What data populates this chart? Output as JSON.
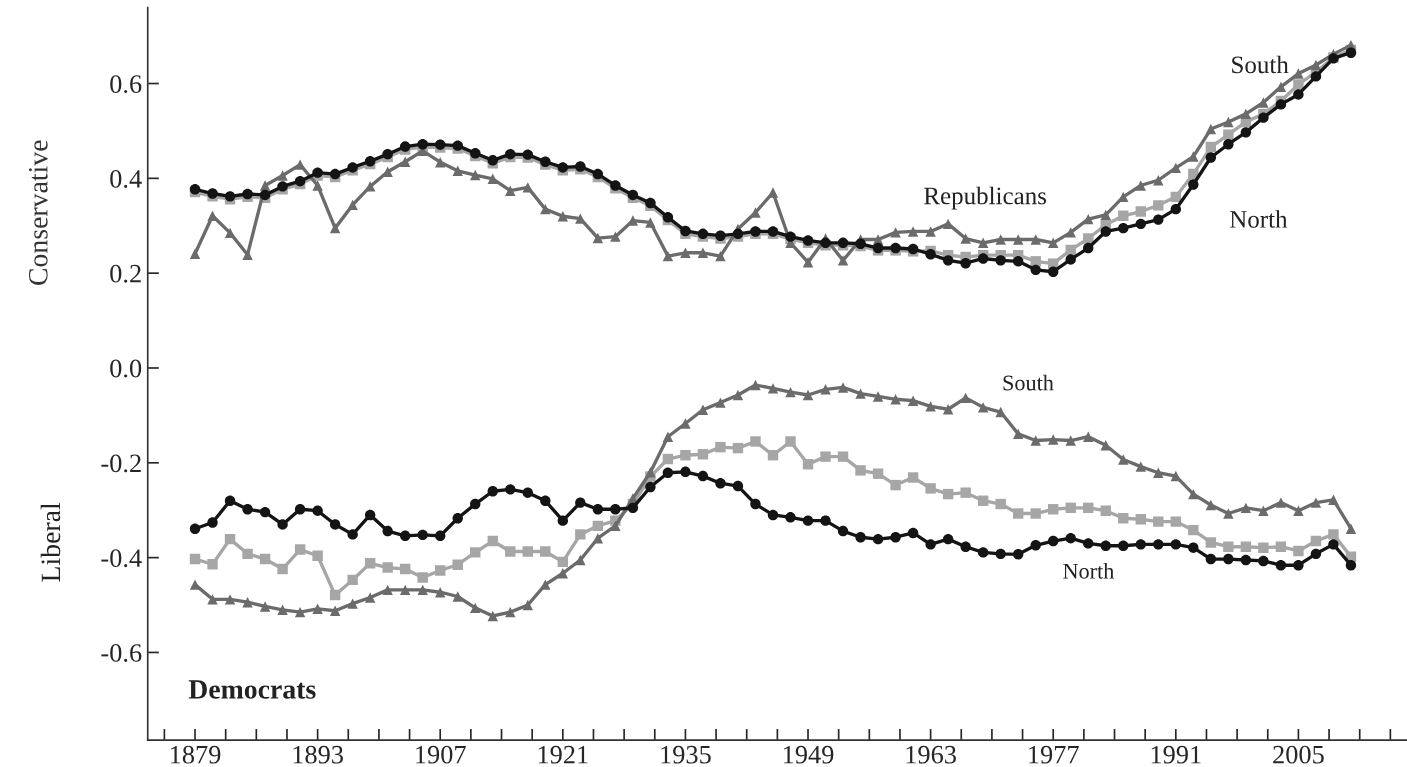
{
  "chart_data": {
    "type": "line",
    "x": [
      1879,
      1881,
      1883,
      1885,
      1887,
      1889,
      1891,
      1893,
      1895,
      1897,
      1899,
      1901,
      1903,
      1905,
      1907,
      1909,
      1911,
      1913,
      1915,
      1917,
      1919,
      1921,
      1923,
      1925,
      1927,
      1929,
      1931,
      1933,
      1935,
      1937,
      1939,
      1941,
      1943,
      1945,
      1947,
      1949,
      1951,
      1953,
      1955,
      1957,
      1959,
      1961,
      1963,
      1965,
      1967,
      1969,
      1971,
      1973,
      1975,
      1977,
      1979,
      1981,
      1983,
      1985,
      1987,
      1989,
      1991,
      1993,
      1995,
      1997,
      1999,
      2001,
      2003,
      2005,
      2007,
      2009,
      2011
    ],
    "series": [
      {
        "color": "#a6a6a6",
        "marker": "square",
        "values": [
          0.371,
          0.362,
          0.356,
          0.361,
          0.359,
          0.377,
          0.388,
          0.406,
          0.403,
          0.417,
          0.43,
          0.445,
          0.461,
          0.466,
          0.465,
          0.463,
          0.447,
          0.432,
          0.445,
          0.444,
          0.429,
          0.417,
          0.419,
          0.403,
          0.379,
          0.359,
          0.342,
          0.312,
          0.283,
          0.277,
          0.273,
          0.277,
          0.283,
          0.283,
          0.272,
          0.264,
          0.259,
          0.259,
          0.257,
          0.248,
          0.248,
          0.246,
          0.247,
          0.238,
          0.234,
          0.238,
          0.238,
          0.238,
          0.225,
          0.22,
          0.249,
          0.273,
          0.302,
          0.321,
          0.33,
          0.343,
          0.361,
          0.409,
          0.466,
          0.492,
          0.519,
          0.536,
          0.563,
          0.598,
          0.624,
          0.655,
          0.671
        ]
      },
      {
        "color": "#6b6b6b",
        "marker": "triangle",
        "values": [
          0.241,
          0.321,
          0.285,
          0.239,
          0.385,
          0.406,
          0.429,
          0.385,
          0.295,
          0.344,
          0.383,
          0.414,
          0.435,
          0.458,
          0.434,
          0.416,
          0.407,
          0.399,
          0.374,
          0.381,
          0.335,
          0.32,
          0.315,
          0.274,
          0.277,
          0.311,
          0.307,
          0.236,
          0.243,
          0.243,
          0.236,
          0.293,
          0.328,
          0.37,
          0.264,
          0.223,
          0.273,
          0.227,
          0.271,
          0.271,
          0.286,
          0.288,
          0.288,
          0.304,
          0.273,
          0.264,
          0.271,
          0.271,
          0.271,
          0.264,
          0.286,
          0.314,
          0.323,
          0.361,
          0.385,
          0.396,
          0.422,
          0.446,
          0.504,
          0.519,
          0.536,
          0.56,
          0.593,
          0.621,
          0.639,
          0.662,
          0.681
        ]
      },
      {
        "color": "#141414",
        "marker": "circle",
        "values": [
          0.377,
          0.368,
          0.362,
          0.367,
          0.365,
          0.383,
          0.394,
          0.412,
          0.409,
          0.423,
          0.436,
          0.451,
          0.467,
          0.472,
          0.471,
          0.469,
          0.453,
          0.438,
          0.451,
          0.45,
          0.435,
          0.423,
          0.425,
          0.409,
          0.385,
          0.365,
          0.348,
          0.318,
          0.289,
          0.283,
          0.279,
          0.283,
          0.288,
          0.288,
          0.277,
          0.269,
          0.264,
          0.264,
          0.262,
          0.253,
          0.253,
          0.251,
          0.24,
          0.227,
          0.221,
          0.231,
          0.227,
          0.225,
          0.207,
          0.203,
          0.229,
          0.253,
          0.288,
          0.295,
          0.304,
          0.313,
          0.335,
          0.387,
          0.444,
          0.472,
          0.497,
          0.528,
          0.556,
          0.577,
          0.615,
          0.653,
          0.665
        ]
      },
      {
        "color": "#a6a6a6",
        "marker": "square",
        "values": [
          -0.403,
          -0.414,
          -0.361,
          -0.392,
          -0.403,
          -0.424,
          -0.383,
          -0.396,
          -0.479,
          -0.447,
          -0.412,
          -0.421,
          -0.424,
          -0.442,
          -0.427,
          -0.415,
          -0.389,
          -0.365,
          -0.387,
          -0.387,
          -0.387,
          -0.409,
          -0.351,
          -0.333,
          -0.322,
          -0.287,
          -0.229,
          -0.192,
          -0.184,
          -0.182,
          -0.167,
          -0.169,
          -0.155,
          -0.184,
          -0.155,
          -0.203,
          -0.187,
          -0.187,
          -0.216,
          -0.223,
          -0.247,
          -0.231,
          -0.254,
          -0.266,
          -0.263,
          -0.28,
          -0.287,
          -0.307,
          -0.307,
          -0.298,
          -0.295,
          -0.295,
          -0.301,
          -0.317,
          -0.319,
          -0.324,
          -0.324,
          -0.342,
          -0.368,
          -0.377,
          -0.377,
          -0.379,
          -0.377,
          -0.386,
          -0.365,
          -0.351,
          -0.398
        ]
      },
      {
        "color": "#6b6b6b",
        "marker": "triangle",
        "values": [
          -0.457,
          -0.488,
          -0.488,
          -0.494,
          -0.503,
          -0.51,
          -0.515,
          -0.508,
          -0.512,
          -0.497,
          -0.484,
          -0.468,
          -0.468,
          -0.468,
          -0.473,
          -0.482,
          -0.506,
          -0.523,
          -0.515,
          -0.5,
          -0.457,
          -0.433,
          -0.405,
          -0.359,
          -0.333,
          -0.275,
          -0.22,
          -0.145,
          -0.117,
          -0.088,
          -0.073,
          -0.057,
          -0.036,
          -0.043,
          -0.051,
          -0.057,
          -0.045,
          -0.041,
          -0.054,
          -0.06,
          -0.066,
          -0.069,
          -0.081,
          -0.087,
          -0.063,
          -0.083,
          -0.093,
          -0.139,
          -0.153,
          -0.151,
          -0.153,
          -0.145,
          -0.163,
          -0.193,
          -0.208,
          -0.221,
          -0.228,
          -0.266,
          -0.289,
          -0.307,
          -0.295,
          -0.301,
          -0.284,
          -0.301,
          -0.284,
          -0.278,
          -0.339
        ]
      },
      {
        "color": "#141414",
        "marker": "circle",
        "values": [
          -0.339,
          -0.326,
          -0.28,
          -0.298,
          -0.304,
          -0.33,
          -0.298,
          -0.301,
          -0.33,
          -0.351,
          -0.31,
          -0.344,
          -0.354,
          -0.352,
          -0.354,
          -0.317,
          -0.287,
          -0.26,
          -0.256,
          -0.263,
          -0.28,
          -0.322,
          -0.284,
          -0.298,
          -0.298,
          -0.295,
          -0.251,
          -0.221,
          -0.219,
          -0.228,
          -0.243,
          -0.249,
          -0.287,
          -0.31,
          -0.315,
          -0.322,
          -0.322,
          -0.344,
          -0.357,
          -0.361,
          -0.357,
          -0.348,
          -0.372,
          -0.361,
          -0.377,
          -0.389,
          -0.392,
          -0.393,
          -0.374,
          -0.365,
          -0.359,
          -0.37,
          -0.375,
          -0.375,
          -0.372,
          -0.372,
          -0.372,
          -0.379,
          -0.403,
          -0.403,
          -0.405,
          -0.407,
          -0.416,
          -0.416,
          -0.392,
          -0.372,
          -0.416
        ]
      }
    ],
    "ylabel": "Conservative",
    "annotations": [
      "Liberal",
      "Republicans",
      "South",
      "North",
      "South",
      "North",
      "Democrats"
    ],
    "xlim": [
      1873.6,
      2017.4
    ],
    "ylim": [
      -0.785,
      0.76
    ],
    "xticks": [
      {
        "value": 1875.5,
        "label": null
      },
      1879,
      {
        "value": 1882.5,
        "label": null
      },
      {
        "value": 1886,
        "label": null
      },
      {
        "value": 1889.5,
        "label": null
      },
      1893,
      {
        "value": 1896.5,
        "label": null
      },
      {
        "value": 1900,
        "label": null
      },
      {
        "value": 1903.5,
        "label": null
      },
      1907,
      {
        "value": 1910.5,
        "label": null
      },
      {
        "value": 1914,
        "label": null
      },
      {
        "value": 1917.5,
        "label": null
      },
      1921,
      {
        "value": 1924.5,
        "label": null
      },
      {
        "value": 1928,
        "label": null
      },
      {
        "value": 1931.5,
        "label": null
      },
      1935,
      {
        "value": 1938.5,
        "label": null
      },
      {
        "value": 1942,
        "label": null
      },
      {
        "value": 1945.5,
        "label": null
      },
      1949,
      {
        "value": 1952.5,
        "label": null
      },
      {
        "value": 1956,
        "label": null
      },
      {
        "value": 1959.5,
        "label": null
      },
      1963,
      {
        "value": 1966.5,
        "label": null
      },
      {
        "value": 1970,
        "label": null
      },
      {
        "value": 1973.5,
        "label": null
      },
      1977,
      {
        "value": 1980.5,
        "label": null
      },
      {
        "value": 1984,
        "label": null
      },
      {
        "value": 1987.5,
        "label": null
      },
      1991,
      {
        "value": 1994.5,
        "label": null
      },
      {
        "value": 1998,
        "label": null
      },
      {
        "value": 2001.5,
        "label": null
      },
      2005,
      {
        "value": 2008.5,
        "label": null
      },
      {
        "value": 2012,
        "label": null
      },
      {
        "value": 2015.5,
        "label": null
      }
    ],
    "yticks": [
      0.6,
      0.4,
      0.2,
      {
        "value": 0,
        "label": "0.0"
      },
      -0.2,
      -0.4,
      -0.6
    ],
    "grid": false,
    "legend": false,
    "line_style": "solid"
  }
}
